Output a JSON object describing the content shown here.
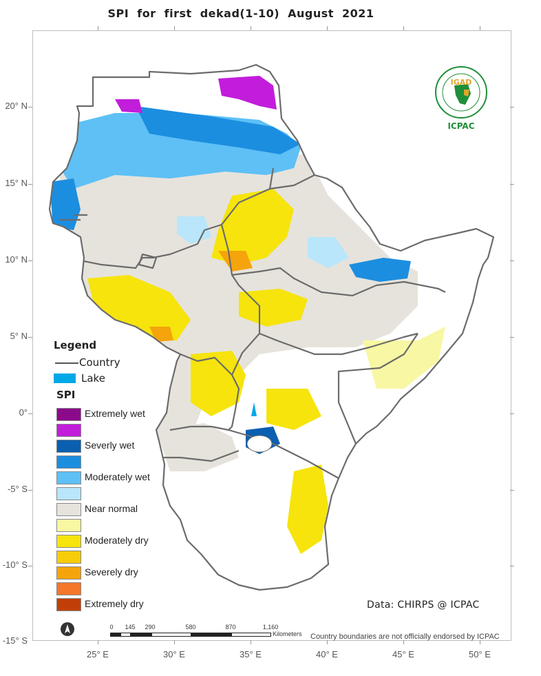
{
  "title": "SPI   for   first  dekad(1-10)  August 2021",
  "lat_ticks": [
    "20° N",
    "15° N",
    "10° N",
    "5° N",
    "0°",
    "-5° S",
    "-10° S",
    "-15° S"
  ],
  "lon_ticks": [
    "25° E",
    "30° E",
    "35° E",
    "40° E",
    "45° E",
    "50° E"
  ],
  "legend": {
    "title": "Legend",
    "country_label": "Country",
    "lake_label": "Lake",
    "lake_color": "#00a8e6",
    "spi_title": "SPI",
    "classes": [
      {
        "label": "Extremely wet",
        "color": "#8b0a8b"
      },
      {
        "label": "",
        "color": "#c21ddb"
      },
      {
        "label": "Severly wet",
        "color": "#0a5fb0"
      },
      {
        "label": "",
        "color": "#1c8ee0"
      },
      {
        "label": "Moderately wet",
        "color": "#5ec0f5"
      },
      {
        "label": "",
        "color": "#b9e6fa"
      },
      {
        "label": "Near normal",
        "color": "#e6e3dc"
      },
      {
        "label": "",
        "color": "#f8f7a3"
      },
      {
        "label": "Moderately dry",
        "color": "#f6e40c"
      },
      {
        "label": "",
        "color": "#f7cc0a"
      },
      {
        "label": "Severely dry",
        "color": "#f5a40c"
      },
      {
        "label": "",
        "color": "#f5772a"
      },
      {
        "label": "Extremely dry",
        "color": "#c13f07"
      }
    ]
  },
  "logo": {
    "org": "ICPAC",
    "badge": "IGAD"
  },
  "source": "Data: CHIRPS @ ICPAC",
  "scale": {
    "labels": [
      "0",
      "145",
      "290",
      "580",
      "870",
      "1,160"
    ],
    "unit": "Kilometers"
  },
  "disclaimer": "Country boundaries are not officially endorsed by ICPAC"
}
